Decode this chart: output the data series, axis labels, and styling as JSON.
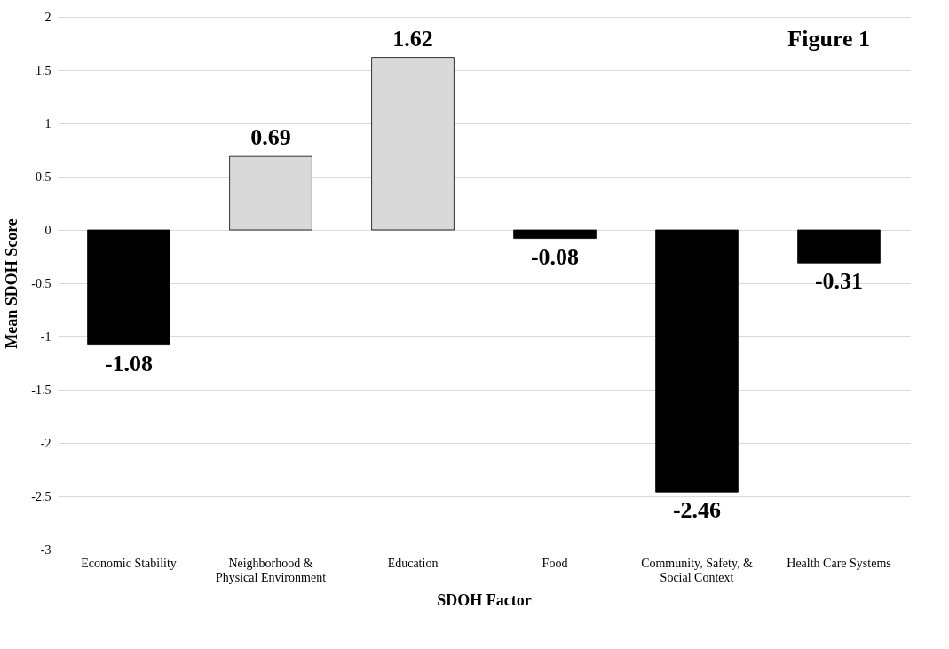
{
  "chart_data": {
    "type": "bar",
    "title": "Figure 1",
    "xlabel": "SDOH Factor",
    "ylabel": "Mean SDOH Score",
    "categories": [
      "Economic Stability",
      "Neighborhood & Physical Environment",
      "Education",
      "Food",
      "Community, Safety, & Social Context",
      "Health Care Systems"
    ],
    "values": [
      -1.08,
      0.69,
      1.62,
      -0.08,
      -2.46,
      -0.31
    ],
    "colors": [
      "#000000",
      "#d9d9d9",
      "#d9d9d9",
      "#000000",
      "#000000",
      "#000000"
    ],
    "ylim": [
      -3,
      2
    ],
    "yticks": [
      -3,
      -2.5,
      -2,
      -1.5,
      -1,
      -0.5,
      0,
      0.5,
      1,
      1.5,
      2
    ],
    "grid": "y",
    "data_labels": true
  }
}
